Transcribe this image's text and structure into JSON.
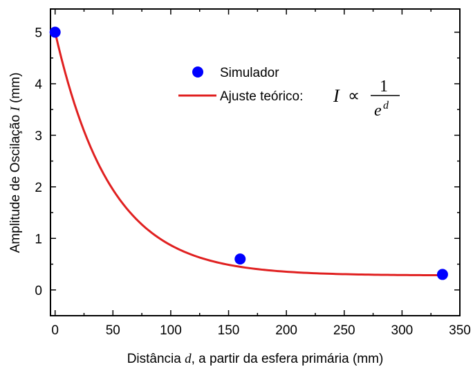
{
  "chart_data": {
    "type": "scatter",
    "xlabel_prefix": "Distância ",
    "xlabel_var": "d",
    "xlabel_suffix": ", a partir da esfera primária (mm)",
    "ylabel_prefix": "Amplitude de Oscilação ",
    "ylabel_var": "I",
    "ylabel_suffix": " (mm)",
    "xlim": [
      -4,
      350
    ],
    "ylim": [
      -0.5,
      5.45
    ],
    "x_ticks": [
      0,
      50,
      100,
      150,
      200,
      250,
      300,
      350
    ],
    "y_ticks": [
      0,
      1,
      2,
      3,
      4,
      5
    ],
    "grid": false,
    "legend_position": "top-right",
    "series": [
      {
        "name": "Simulador",
        "kind": "scatter",
        "color": "#0000ff",
        "x": [
          0,
          160,
          335
        ],
        "y": [
          5.0,
          0.6,
          0.3
        ]
      },
      {
        "name": "Ajuste teórico: ",
        "formula": {
          "lhs": "I",
          "op": "∝",
          "numerator": "1",
          "base": "e",
          "exponent": "d"
        },
        "kind": "line",
        "color": "#e02020",
        "model": {
          "amplitude": 4.72,
          "decay_mm": 48.0,
          "offset": 0.28
        },
        "x_range": [
          0,
          335
        ]
      }
    ]
  }
}
